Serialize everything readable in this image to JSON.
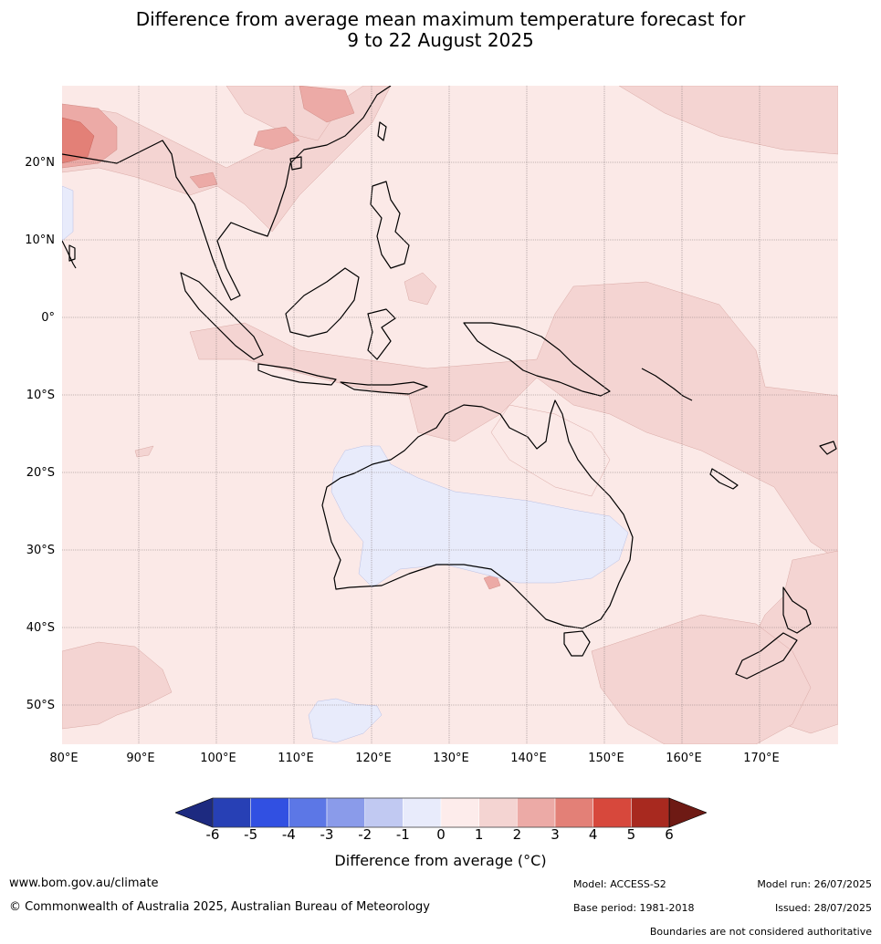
{
  "title": {
    "line1": "Difference from average mean maximum temperature forecast for",
    "line2": "9 to 22 August 2025"
  },
  "map": {
    "lat_labels": [
      "20°N",
      "10°N",
      "0°",
      "10°S",
      "20°S",
      "30°S",
      "40°S",
      "50°S"
    ],
    "lon_labels": [
      "80°E",
      "90°E",
      "100°E",
      "110°E",
      "120°E",
      "130°E",
      "140°E",
      "150°E",
      "160°E",
      "170°E"
    ],
    "background_color": "#fbe9e7"
  },
  "colorbar": {
    "ticks": [
      "-6",
      "-5",
      "-4",
      "-3",
      "-2",
      "-1",
      "0",
      "1",
      "2",
      "3",
      "4",
      "5",
      "6"
    ],
    "colors": [
      "#1d2a80",
      "#2740b5",
      "#3150e2",
      "#5c77e6",
      "#8a9bea",
      "#c1c9f2",
      "#e8ebfb",
      "#fdeceb",
      "#f4d4d2",
      "#ecaaa6",
      "#e38077",
      "#d7483c",
      "#a8291f",
      "#6e1a14"
    ],
    "label": "Difference from average (°C)"
  },
  "footer": {
    "website": "www.bom.gov.au/climate",
    "copyright": "© Commonwealth of Australia 2025, Australian Bureau of Meteorology",
    "model": "Model: ACCESS-S2",
    "base_period": "Base period: 1981-2018",
    "model_run": "Model run: 26/07/2025",
    "issued": "Issued: 28/07/2025",
    "disclaimer": "Boundaries are not considered authoritative"
  }
}
